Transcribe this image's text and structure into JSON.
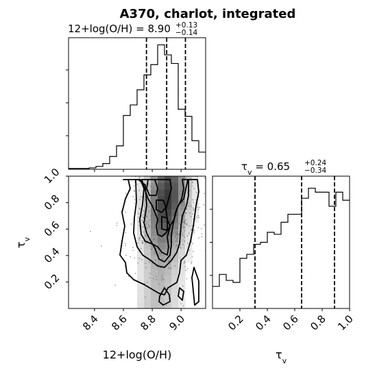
{
  "chart_data": {
    "type": "corner",
    "title": "A370, charlot, integrated",
    "parameters": [
      {
        "name": "12+log(O/H)",
        "label": "12+log(O/H)",
        "median": 8.9,
        "plus": 0.13,
        "minus": 0.14,
        "summary_prefix": "12+log(O/H) = ",
        "summary_value": "8.90",
        "summary_plus": "+0.13",
        "summary_minus": "−0.14",
        "range": [
          8.22,
          9.17
        ],
        "ticks": [
          "8.4",
          "8.6",
          "8.8",
          "9.0"
        ],
        "tick_values": [
          8.4,
          8.6,
          8.8,
          9.0
        ],
        "quantiles": [
          8.76,
          8.9,
          9.03
        ],
        "histogram": {
          "edges": [
            8.22,
            8.2675,
            8.315,
            8.3625,
            8.41,
            8.4575,
            8.505,
            8.5525,
            8.6,
            8.6475,
            8.695,
            8.7425,
            8.79,
            8.8375,
            8.885,
            8.9325,
            8.98,
            9.0275,
            9.075,
            9.1225,
            9.17
          ],
          "counts": [
            0.3,
            0.3,
            0.3,
            0.5,
            1.0,
            2.0,
            4.5,
            8.2,
            18.8,
            22.5,
            27.8,
            33.0,
            36.6,
            43.5,
            40.0,
            37.0,
            21.0,
            18.5,
            10.0,
            6.0
          ]
        }
      },
      {
        "name": "tau_v",
        "label_main": "τ",
        "label_sub": "v",
        "median": 0.65,
        "plus": 0.24,
        "minus": 0.34,
        "summary_prefix_main": "τ",
        "summary_prefix_sub": "v",
        "summary_eq": " = 0.65",
        "summary_plus": "+0.24",
        "summary_minus": "−0.34",
        "range": [
          0.0,
          1.0
        ],
        "ticks": [
          "0.2",
          "0.4",
          "0.6",
          "0.8",
          "1.0"
        ],
        "tick_values": [
          0.2,
          0.4,
          0.6,
          0.8,
          1.0
        ],
        "quantiles": [
          0.31,
          0.65,
          0.89
        ],
        "histogram": {
          "edges": [
            0.0,
            0.05,
            0.1,
            0.15,
            0.2,
            0.25,
            0.3,
            0.35,
            0.4,
            0.45,
            0.5,
            0.55,
            0.6,
            0.65,
            0.7,
            0.75,
            0.8,
            0.85,
            0.9,
            0.95,
            1.0
          ],
          "counts": [
            11,
            17,
            14,
            13,
            25,
            27,
            32,
            33,
            38,
            37,
            43,
            47,
            47,
            55,
            60,
            58,
            58,
            51,
            58,
            54
          ]
        }
      }
    ],
    "joint": {
      "x_param": "12+log(O/H)",
      "y_param": "tau_v",
      "contour_levels": 4,
      "density_rows_note": "",
      "density_x_edges": [
        8.22,
        8.2675,
        8.315,
        8.3625,
        8.41,
        8.4575,
        8.505,
        8.5525,
        8.6,
        8.6475,
        8.695,
        8.7425,
        8.79,
        8.8375,
        8.885,
        8.9325,
        8.98,
        9.0275,
        9.075,
        9.1225,
        9.17
      ],
      "density_y_edges": [
        0.0,
        0.05,
        0.1,
        0.15,
        0.2,
        0.25,
        0.3,
        0.35,
        0.4,
        0.45,
        0.5,
        0.55,
        0.6,
        0.65,
        0.7,
        0.75,
        0.8,
        0.85,
        0.9,
        0.95,
        1.0
      ]
    }
  }
}
